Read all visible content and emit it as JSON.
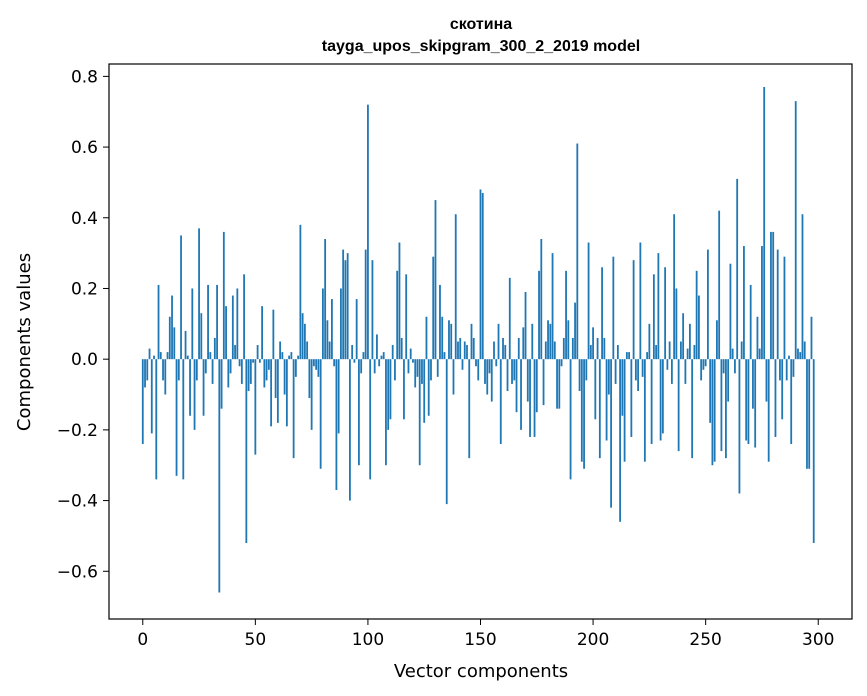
{
  "chart_data": {
    "type": "bar",
    "title": "скотина",
    "subtitle": "tayga_upos_skipgram_300_2_2019 model",
    "xlabel": "Vector components",
    "ylabel": "Components values",
    "xlim": [
      -15,
      315
    ],
    "ylim": [
      -0.735,
      0.835
    ],
    "xticks": [
      0,
      50,
      100,
      150,
      200,
      250,
      300
    ],
    "yticks": [
      -0.6,
      -0.4,
      -0.2,
      0.0,
      0.2,
      0.4,
      0.6,
      0.8
    ],
    "ytick_labels": [
      "−0.6",
      "−0.4",
      "−0.2",
      "0.0",
      "0.2",
      "0.4",
      "0.6",
      "0.8"
    ],
    "bar_color": "#1f77b4",
    "grid": false,
    "legend": "none",
    "values": [
      -0.24,
      -0.08,
      -0.06,
      0.03,
      -0.21,
      0.01,
      -0.34,
      0.21,
      0.02,
      -0.06,
      -0.1,
      0.02,
      0.12,
      0.18,
      0.09,
      -0.33,
      -0.06,
      0.35,
      -0.34,
      0.08,
      0.01,
      -0.16,
      0.2,
      -0.2,
      -0.06,
      0.37,
      0.13,
      -0.16,
      -0.04,
      0.21,
      0.02,
      -0.07,
      0.06,
      0.21,
      -0.66,
      -0.14,
      0.36,
      0.15,
      -0.08,
      -0.04,
      0.18,
      0.04,
      0.2,
      -0.02,
      -0.07,
      0.24,
      -0.52,
      -0.09,
      -0.07,
      -0.01,
      -0.27,
      0.04,
      -0.01,
      0.15,
      -0.08,
      -0.06,
      -0.03,
      -0.19,
      0.14,
      -0.11,
      -0.18,
      0.05,
      0.02,
      -0.1,
      -0.19,
      0.01,
      0.02,
      -0.28,
      -0.05,
      0.01,
      0.38,
      0.13,
      0.1,
      0.05,
      -0.11,
      -0.2,
      -0.02,
      -0.03,
      -0.05,
      -0.31,
      0.2,
      0.34,
      0.11,
      0.05,
      0.17,
      -0.02,
      -0.37,
      -0.21,
      0.2,
      0.31,
      0.28,
      0.3,
      -0.4,
      0.04,
      -0.01,
      0.17,
      -0.3,
      -0.04,
      0.02,
      0.31,
      0.72,
      -0.34,
      0.28,
      -0.04,
      0.07,
      -0.02,
      0.01,
      0.02,
      -0.3,
      -0.2,
      -0.17,
      0.04,
      -0.06,
      0.25,
      0.33,
      0.06,
      -0.17,
      0.24,
      -0.04,
      0.03,
      -0.01,
      -0.08,
      -0.05,
      -0.3,
      -0.07,
      -0.18,
      0.12,
      -0.16,
      -0.06,
      0.29,
      0.45,
      -0.05,
      0.21,
      0.12,
      0.02,
      -0.41,
      0.11,
      0.1,
      -0.1,
      0.41,
      0.05,
      0.06,
      -0.03,
      0.05,
      0.04,
      -0.28,
      0.1,
      0.06,
      -0.02,
      -0.06,
      0.48,
      0.47,
      -0.07,
      -0.1,
      -0.04,
      -0.12,
      0.05,
      -0.02,
      0.1,
      -0.24,
      0.06,
      0.04,
      -0.09,
      0.23,
      -0.07,
      -0.06,
      -0.15,
      0.06,
      -0.2,
      0.09,
      0.19,
      -0.12,
      -0.22,
      0.1,
      -0.22,
      -0.15,
      0.25,
      0.34,
      -0.13,
      0.05,
      0.11,
      0.1,
      0.3,
      0.05,
      -0.14,
      -0.14,
      -0.02,
      0.06,
      0.25,
      0.11,
      -0.34,
      0.06,
      0.16,
      0.61,
      -0.09,
      -0.29,
      -0.31,
      -0.06,
      0.33,
      0.04,
      0.09,
      -0.17,
      0.06,
      -0.28,
      0.26,
      0.06,
      -0.23,
      -0.1,
      -0.42,
      0.29,
      -0.07,
      0.04,
      -0.46,
      -0.16,
      -0.29,
      0.02,
      0.02,
      -0.22,
      0.28,
      -0.06,
      -0.09,
      0.33,
      -0.05,
      -0.29,
      0.02,
      0.1,
      -0.24,
      0.24,
      0.04,
      0.3,
      -0.23,
      -0.21,
      0.26,
      -0.03,
      0.05,
      -0.07,
      0.41,
      0.2,
      -0.26,
      0.05,
      0.13,
      -0.07,
      0.03,
      0.1,
      -0.28,
      0.04,
      0.25,
      0.18,
      -0.06,
      -0.03,
      -0.02,
      0.31,
      -0.18,
      -0.3,
      -0.29,
      0.11,
      0.42,
      -0.26,
      -0.04,
      -0.28,
      -0.12,
      0.27,
      0.03,
      -0.04,
      0.51,
      -0.38,
      0.05,
      0.32,
      -0.23,
      -0.24,
      0.21,
      -0.14,
      -0.25,
      0.12,
      0.03,
      0.32,
      0.77,
      -0.12,
      -0.29,
      0.36,
      0.36,
      -0.22,
      0.31,
      -0.06,
      -0.17,
      0.29,
      -0.06,
      0.01,
      -0.24,
      -0.05,
      0.73,
      0.03,
      0.02,
      0.41,
      0.05,
      -0.31,
      -0.31,
      0.12,
      -0.52
    ]
  }
}
